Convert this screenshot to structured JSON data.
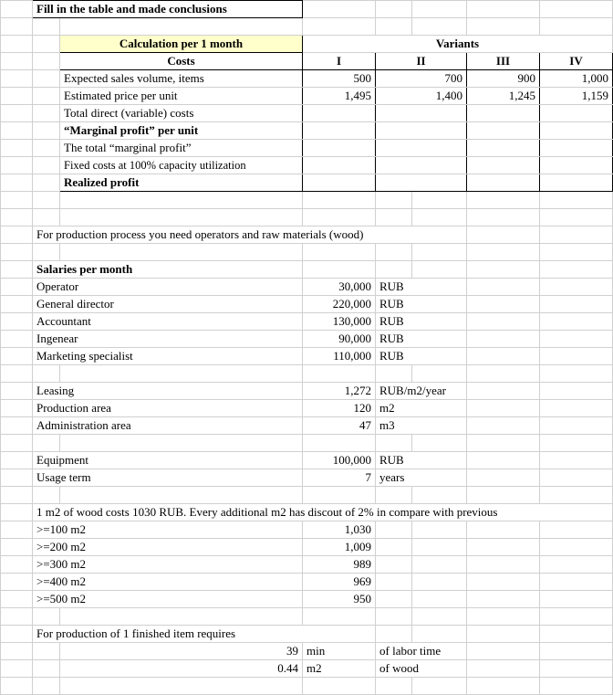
{
  "title": "Fill in the table and made conclusions",
  "calc_header": "Calculation per 1 month",
  "variants_label": "Variants",
  "costs_label": "Costs",
  "variant_cols": [
    "I",
    "II",
    "III",
    "IV"
  ],
  "rows_main": {
    "r1": {
      "label": "Expected sales volume, items",
      "v": [
        "500",
        "700",
        "900",
        "1,000"
      ]
    },
    "r2": {
      "label": "Estimated price per unit",
      "v": [
        "1,495",
        "1,400",
        "1,245",
        "1,159"
      ]
    },
    "r3": {
      "label": "Total direct (variable) costs"
    },
    "r4": {
      "label": "“Marginal profit” per unit",
      "bold": true
    },
    "r5": {
      "label": "The total “marginal profit”"
    },
    "r6": {
      "label": "Fixed costs at 100% capacity utilization"
    },
    "r7": {
      "label": "Realized profit",
      "bold": true
    }
  },
  "prod_note": "For production process you need operators and raw materials (wood)",
  "salaries_hdr": "Salaries  per month",
  "salaries": [
    {
      "label": "Operator",
      "val": "30,000",
      "unit": "RUB"
    },
    {
      "label": "General director",
      "val": "220,000",
      "unit": "RUB"
    },
    {
      "label": "Accountant",
      "val": "130,000",
      "unit": "RUB"
    },
    {
      "label": "Ingenear",
      "val": "90,000",
      "unit": "RUB"
    },
    {
      "label": "Marketing specialist",
      "val": "110,000",
      "unit": "RUB"
    }
  ],
  "leasing": {
    "label": "Leasing",
    "val": "1,272",
    "unit": "RUB/m2/year"
  },
  "prod_area": {
    "label": "Production area",
    "val": "120",
    "unit": "m2"
  },
  "admin_area": {
    "label": "Administration area",
    "val": "47",
    "unit": "m3"
  },
  "equip": {
    "label": "Equipment",
    "val": "100,000",
    "unit": "RUB"
  },
  "usage": {
    "label": "Usage term",
    "val": "7",
    "unit": "years"
  },
  "wood_note": "1 m2 of wood costs 1030 RUB. Every additional m2 has discout of 2% in compare with previous",
  "wood": [
    {
      "label": ">=100 m2",
      "val": "1,030"
    },
    {
      "label": ">=200 m2",
      "val": "1,009"
    },
    {
      "label": ">=300 m2",
      "val": "989"
    },
    {
      "label": ">=400 m2",
      "val": "969"
    },
    {
      "label": ">=500 m2",
      "val": "950"
    }
  ],
  "finish_note": "For production of 1 finished item requires",
  "finish": [
    {
      "val": "39",
      "unit1": "min",
      "unit2": "of labor time"
    },
    {
      "val": "0.44",
      "unit1": "m2",
      "unit2": "of wood"
    }
  ]
}
